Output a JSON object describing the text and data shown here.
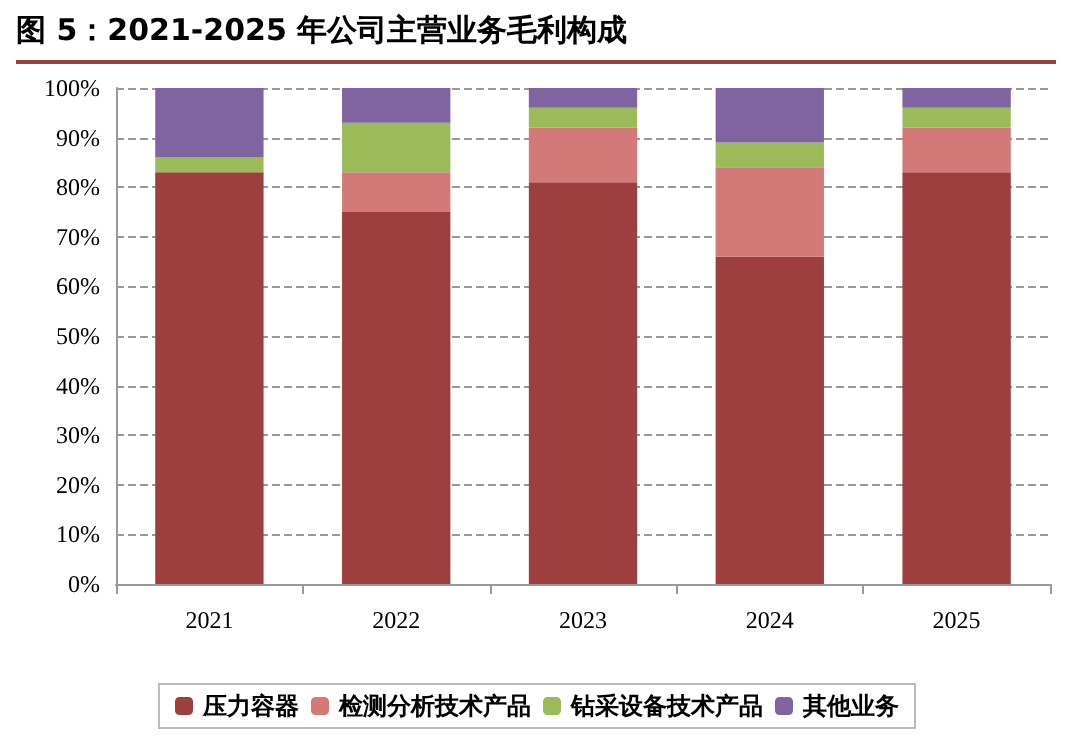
{
  "chart_data": {
    "type": "bar",
    "title": "图 5：2021-2025 年公司主营业务毛利构成",
    "categories": [
      "2021",
      "2022",
      "2023",
      "2024",
      "2025"
    ],
    "stacked": true,
    "ylim": [
      0,
      100
    ],
    "yticks": [
      {
        "value": 0,
        "label": "0%"
      },
      {
        "value": 10,
        "label": "10%"
      },
      {
        "value": 20,
        "label": "20%"
      },
      {
        "value": 30,
        "label": "30%"
      },
      {
        "value": 40,
        "label": "40%"
      },
      {
        "value": 50,
        "label": "50%"
      },
      {
        "value": 60,
        "label": "60%"
      },
      {
        "value": 70,
        "label": "70%"
      },
      {
        "value": 80,
        "label": "80%"
      },
      {
        "value": 90,
        "label": "90%"
      },
      {
        "value": 100,
        "label": "100%"
      }
    ],
    "grid": "y",
    "legend": "bottom",
    "series": [
      {
        "name": "压力容器",
        "color": "#9c3f3e",
        "values": [
          83,
          75,
          81,
          66,
          83
        ]
      },
      {
        "name": "检测分析技术产品",
        "color": "#d37a78",
        "values": [
          0,
          8,
          11,
          18,
          9
        ]
      },
      {
        "name": "钻采设备技术产品",
        "color": "#9bbb59",
        "values": [
          3,
          10,
          4,
          5,
          4
        ]
      },
      {
        "name": "其他业务",
        "color": "#8064a2",
        "values": [
          14,
          7,
          4,
          11,
          4
        ]
      }
    ]
  }
}
